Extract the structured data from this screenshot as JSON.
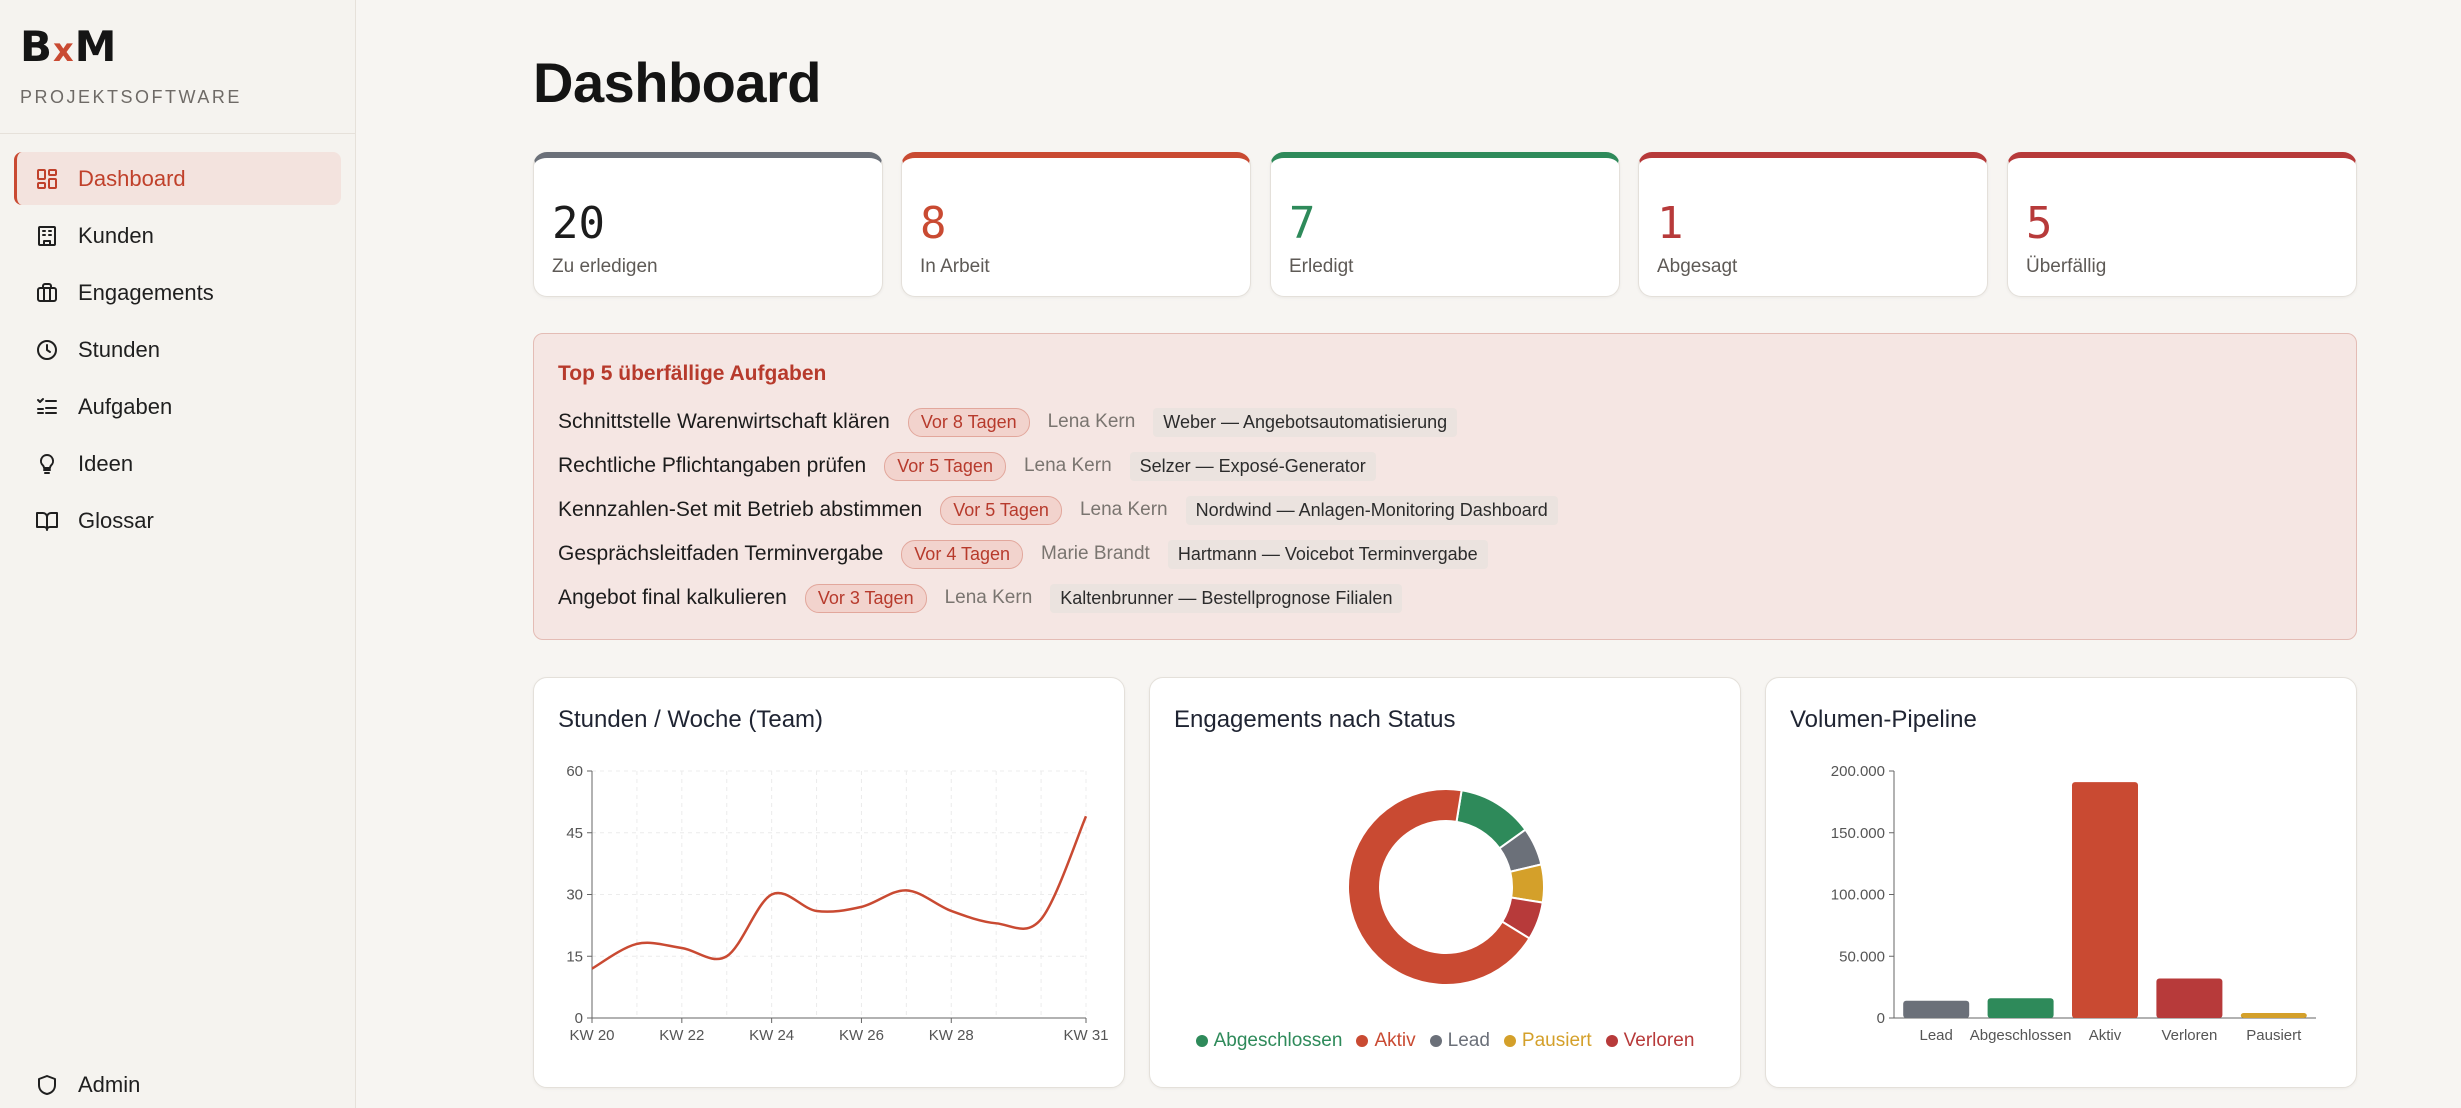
{
  "app": {
    "logo_b": "B",
    "logo_x": "x",
    "logo_m": "M",
    "subtitle": "PROJEKTSOFTWARE"
  },
  "nav": {
    "items": [
      {
        "label": "Dashboard",
        "icon": "dashboard-icon"
      },
      {
        "label": "Kunden",
        "icon": "building-icon"
      },
      {
        "label": "Engagements",
        "icon": "briefcase-icon"
      },
      {
        "label": "Stunden",
        "icon": "clock-icon"
      },
      {
        "label": "Aufgaben",
        "icon": "checklist-icon"
      },
      {
        "label": "Ideen",
        "icon": "lightbulb-icon"
      },
      {
        "label": "Glossar",
        "icon": "book-icon"
      }
    ],
    "admin": {
      "label": "Admin",
      "icon": "shield-icon"
    }
  },
  "page": {
    "title": "Dashboard"
  },
  "stats": [
    {
      "value": "20",
      "label": "Zu erledigen",
      "color": "#1c1c1c",
      "accent": "#6b7079"
    },
    {
      "value": "8",
      "label": "In Arbeit",
      "color": "#c94a32",
      "accent": "#c94a32"
    },
    {
      "value": "7",
      "label": "Erledigt",
      "color": "#2e8a5a",
      "accent": "#2e8a5a"
    },
    {
      "value": "1",
      "label": "Abgesagt",
      "color": "#b73a3a",
      "accent": "#b73a3a"
    },
    {
      "value": "5",
      "label": "Überfällig",
      "color": "#b73a3a",
      "accent": "#b73a3a"
    }
  ],
  "overdue": {
    "title": "Top 5 überfällige Aufgaben",
    "rows": [
      {
        "task": "Schnittstelle Warenwirtschaft klären",
        "badge": "Vor 8 Tagen",
        "user": "Lena Kern",
        "project": "Weber — Angebotsautomatisierung"
      },
      {
        "task": "Rechtliche Pflichtangaben prüfen",
        "badge": "Vor 5 Tagen",
        "user": "Lena Kern",
        "project": "Selzer — Exposé-Generator"
      },
      {
        "task": "Kennzahlen-Set mit Betrieb abstimmen",
        "badge": "Vor 5 Tagen",
        "user": "Lena Kern",
        "project": "Nordwind — Anlagen-Monitoring Dashboard"
      },
      {
        "task": "Gesprächsleitfaden Terminvergabe",
        "badge": "Vor 4 Tagen",
        "user": "Marie Brandt",
        "project": "Hartmann — Voicebot Terminvergabe"
      },
      {
        "task": "Angebot final kalkulieren",
        "badge": "Vor 3 Tagen",
        "user": "Lena Kern",
        "project": "Kaltenbrunner — Bestellprognose Filialen"
      }
    ]
  },
  "chart_data": [
    {
      "type": "line",
      "title": "Stunden / Woche (Team)",
      "x": [
        "KW 20",
        "KW 21",
        "KW 22",
        "KW 23",
        "KW 24",
        "KW 25",
        "KW 26",
        "KW 27",
        "KW 28",
        "KW 29",
        "KW 30",
        "KW 31"
      ],
      "xticks": [
        "KW 20",
        "KW 22",
        "KW 24",
        "KW 26",
        "KW 28",
        "KW 31"
      ],
      "values": [
        12,
        18,
        17,
        15,
        30,
        26,
        27,
        31,
        26,
        23,
        24,
        49
      ],
      "ylim": [
        0,
        60
      ],
      "yticks": [
        0,
        15,
        30,
        45,
        60
      ],
      "grid": true,
      "color": "#c94a32"
    },
    {
      "type": "pie",
      "title": "Engagements nach Status",
      "donut": true,
      "legend": "bottom",
      "slices": [
        {
          "name": "Abgeschlossen",
          "value": 2,
          "color": "#2e8a5a"
        },
        {
          "name": "Lead",
          "value": 1,
          "color": "#6b7079"
        },
        {
          "name": "Pausiert",
          "value": 1,
          "color": "#d4a02a"
        },
        {
          "name": "Verloren",
          "value": 1,
          "color": "#b73a3a"
        },
        {
          "name": "Aktiv",
          "value": 11,
          "color": "#c94a32"
        }
      ],
      "legend_order": [
        "Abgeschlossen",
        "Aktiv",
        "Lead",
        "Pausiert",
        "Verloren"
      ]
    },
    {
      "type": "bar",
      "title": "Volumen-Pipeline",
      "categories": [
        "Lead",
        "Abgeschlossen",
        "Aktiv",
        "Verloren",
        "Pausiert"
      ],
      "values": [
        14000,
        16000,
        191000,
        32000,
        4000
      ],
      "colors": [
        "#6b7079",
        "#2e8a5a",
        "#c94a32",
        "#b73a3a",
        "#d4a02a"
      ],
      "ylim": [
        0,
        200000
      ],
      "yticks": [
        "0",
        "50.000",
        "100.000",
        "150.000",
        "200.000"
      ],
      "grid": false
    }
  ]
}
